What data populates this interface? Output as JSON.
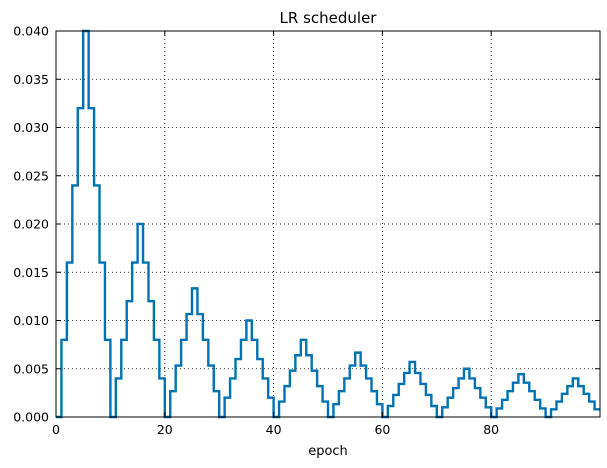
{
  "chart_data": {
    "type": "line",
    "drawstyle": "steps-post",
    "title": "LR scheduler",
    "xlabel": "epoch",
    "ylabel": "",
    "xlim": [
      0,
      100
    ],
    "ylim": [
      0,
      0.04
    ],
    "xticks": [
      0,
      20,
      40,
      60,
      80
    ],
    "xtick_labels": [
      "0",
      "20",
      "40",
      "60",
      "80"
    ],
    "yticks": [
      0,
      0.005,
      0.01,
      0.015,
      0.02,
      0.025,
      0.03,
      0.035,
      0.04
    ],
    "ytick_labels": [
      "0.000",
      "0.005",
      "0.010",
      "0.015",
      "0.020",
      "0.025",
      "0.030",
      "0.035",
      "0.040"
    ],
    "grid": true,
    "legend": "none",
    "series": [
      {
        "color": "#0072b2",
        "x": [
          0,
          1,
          2,
          3,
          4,
          5,
          6,
          7,
          8,
          9,
          10,
          11,
          12,
          13,
          14,
          15,
          16,
          17,
          18,
          19,
          20,
          21,
          22,
          23,
          24,
          25,
          26,
          27,
          28,
          29,
          30,
          31,
          32,
          33,
          34,
          35,
          36,
          37,
          38,
          39,
          40,
          41,
          42,
          43,
          44,
          45,
          46,
          47,
          48,
          49,
          50,
          51,
          52,
          53,
          54,
          55,
          56,
          57,
          58,
          59,
          60,
          61,
          62,
          63,
          64,
          65,
          66,
          67,
          68,
          69,
          70,
          71,
          72,
          73,
          74,
          75,
          76,
          77,
          78,
          79,
          80,
          81,
          82,
          83,
          84,
          85,
          86,
          87,
          88,
          89,
          90,
          91,
          92,
          93,
          94,
          95,
          96,
          97,
          98,
          99
        ],
        "values": [
          0,
          0.008,
          0.016,
          0.024,
          0.032,
          0.04,
          0.032,
          0.024,
          0.016,
          0.008,
          0,
          0.004,
          0.008,
          0.012,
          0.016,
          0.02,
          0.016,
          0.012,
          0.008,
          0.004,
          0,
          0.00267,
          0.00533,
          0.008,
          0.01067,
          0.01333,
          0.01067,
          0.008,
          0.00533,
          0.00267,
          0,
          0.002,
          0.004,
          0.006,
          0.008,
          0.01,
          0.008,
          0.006,
          0.004,
          0.002,
          0,
          0.0016,
          0.0032,
          0.0048,
          0.0064,
          0.008,
          0.0064,
          0.0048,
          0.0032,
          0.0016,
          0,
          0.00133,
          0.00267,
          0.004,
          0.00533,
          0.00667,
          0.00533,
          0.004,
          0.00267,
          0.00133,
          0,
          0.00114,
          0.00229,
          0.00343,
          0.00457,
          0.00571,
          0.00457,
          0.00343,
          0.00229,
          0.00114,
          0,
          0.001,
          0.002,
          0.003,
          0.004,
          0.005,
          0.004,
          0.003,
          0.002,
          0.001,
          0,
          0.00089,
          0.00178,
          0.00267,
          0.00356,
          0.00444,
          0.00356,
          0.00267,
          0.00178,
          0.00089,
          0,
          0.0008,
          0.0016,
          0.0024,
          0.0032,
          0.004,
          0.0032,
          0.0024,
          0.0016,
          0.0008
        ]
      }
    ]
  }
}
